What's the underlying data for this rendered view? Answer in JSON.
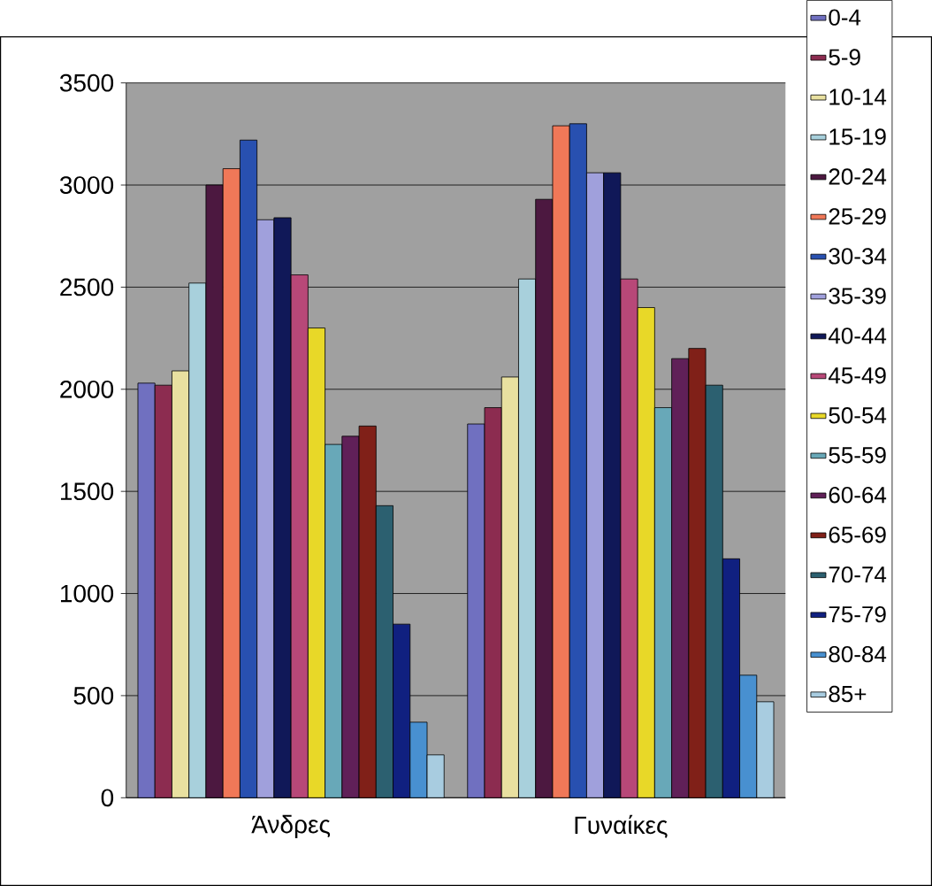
{
  "chart_data": {
    "type": "bar",
    "categories": [
      "Άνδρες",
      "Γυναίκες"
    ],
    "series": [
      {
        "name": "0-4",
        "color": "#7070c0",
        "values": [
          2030,
          1830
        ]
      },
      {
        "name": "5-9",
        "color": "#8c2c50",
        "values": [
          2020,
          1910
        ]
      },
      {
        "name": "10-14",
        "color": "#e8e0a0",
        "values": [
          2090,
          2060
        ]
      },
      {
        "name": "15-19",
        "color": "#a8d0dc",
        "values": [
          2520,
          2540
        ]
      },
      {
        "name": "20-24",
        "color": "#4c1840",
        "values": [
          3000,
          2930
        ]
      },
      {
        "name": "25-29",
        "color": "#f07858",
        "values": [
          3080,
          3290
        ]
      },
      {
        "name": "30-34",
        "color": "#2850b0",
        "values": [
          3220,
          3300
        ]
      },
      {
        "name": "35-39",
        "color": "#a0a0dc",
        "values": [
          2830,
          3060
        ]
      },
      {
        "name": "40-44",
        "color": "#101858",
        "values": [
          2840,
          3060
        ]
      },
      {
        "name": "45-49",
        "color": "#b84878",
        "values": [
          2560,
          2540
        ]
      },
      {
        "name": "50-54",
        "color": "#e8d828",
        "values": [
          2300,
          2400
        ]
      },
      {
        "name": "55-59",
        "color": "#68a8b8",
        "values": [
          1730,
          1910
        ]
      },
      {
        "name": "60-64",
        "color": "#602058",
        "values": [
          1770,
          2150
        ]
      },
      {
        "name": "65-69",
        "color": "#802018",
        "values": [
          1820,
          2200
        ]
      },
      {
        "name": "70-74",
        "color": "#2c6070",
        "values": [
          1430,
          2020
        ]
      },
      {
        "name": "75-79",
        "color": "#102080",
        "values": [
          850,
          1170
        ]
      },
      {
        "name": "80-84",
        "color": "#4890d0",
        "values": [
          370,
          600
        ]
      },
      {
        "name": "85+",
        "color": "#a8cce0",
        "values": [
          210,
          470
        ]
      }
    ],
    "ylim": [
      0,
      3500
    ],
    "yticks": [
      0,
      500,
      1000,
      1500,
      2000,
      2500,
      3000,
      3500
    ],
    "grid": "y",
    "legend": "right"
  }
}
